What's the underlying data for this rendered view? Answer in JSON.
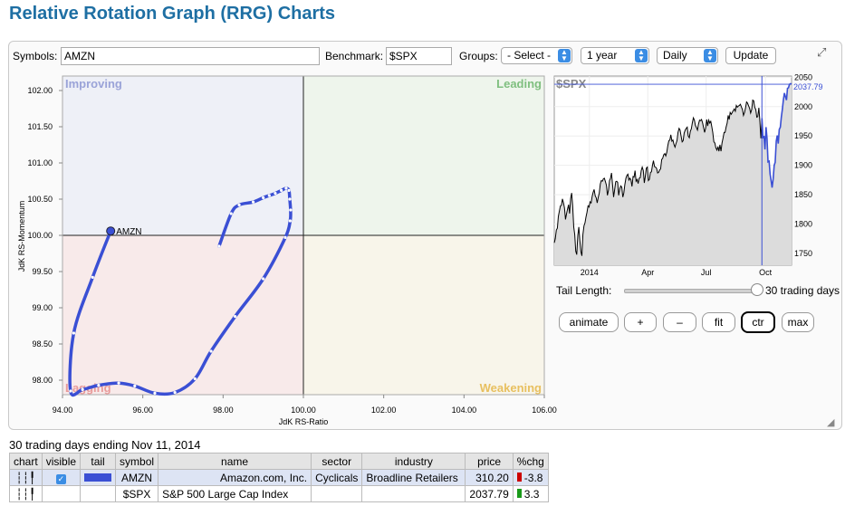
{
  "page": {
    "title": "Relative Rotation Graph (RRG) Charts"
  },
  "controls": {
    "symbols_label": "Symbols:",
    "symbols_value": "AMZN",
    "benchmark_label": "Benchmark:",
    "benchmark_value": "$SPX",
    "groups_label": "Groups:",
    "groups_value": "- Select -",
    "period_value": "1 year",
    "frequency_value": "Daily",
    "update_label": "Update"
  },
  "chart_data": [
    {
      "type": "scatter",
      "title": "",
      "xlabel": "JdK RS-Ratio",
      "ylabel": "JdK RS-Momentum",
      "xlim": [
        94,
        106
      ],
      "ylim": [
        97.8,
        102.2
      ],
      "xticks": [
        "94.00",
        "96.00",
        "98.00",
        "100.00",
        "102.00",
        "104.00",
        "106.00"
      ],
      "yticks": [
        "102.00",
        "101.50",
        "101.00",
        "100.50",
        "100.00",
        "99.50",
        "99.00",
        "98.50",
        "98.00"
      ],
      "quadrants": {
        "improving": "Improving",
        "leading": "Leading",
        "weakening": "Weakening",
        "lagging": "Lagging"
      },
      "quadrant_colors": {
        "improving": "#eef0f7",
        "leading": "#eef5ec",
        "weakening": "#f8f5ea",
        "lagging": "#f8eaea"
      },
      "series": [
        {
          "name": "AMZN",
          "color": "#3a4fd4",
          "points": [
            [
              97.9,
              99.85
            ],
            [
              98.2,
              100.3
            ],
            [
              98.4,
              100.42
            ],
            [
              98.75,
              100.46
            ],
            [
              99.0,
              100.52
            ],
            [
              99.15,
              100.55
            ],
            [
              99.3,
              100.58
            ],
            [
              99.45,
              100.62
            ],
            [
              99.57,
              100.65
            ],
            [
              99.64,
              100.62
            ],
            [
              99.66,
              100.5
            ],
            [
              99.68,
              100.35
            ],
            [
              99.67,
              100.2
            ],
            [
              99.55,
              99.97
            ],
            [
              99.0,
              99.4
            ],
            [
              98.3,
              98.88
            ],
            [
              97.7,
              98.4
            ],
            [
              97.3,
              98.02
            ],
            [
              96.8,
              97.83
            ],
            [
              96.3,
              97.82
            ],
            [
              95.8,
              97.92
            ],
            [
              95.4,
              97.96
            ],
            [
              94.9,
              97.93
            ],
            [
              94.5,
              97.87
            ],
            [
              94.2,
              97.85
            ],
            [
              94.28,
              98.65
            ],
            [
              94.75,
              99.42
            ],
            [
              95.2,
              100.06
            ]
          ]
        }
      ]
    },
    {
      "type": "line",
      "title": "$SPX",
      "last_value": "2037.79",
      "x_tick_labels": [
        "2014",
        "Apr",
        "Jul",
        "Oct"
      ],
      "yticks": [
        "2050",
        "2000",
        "1950",
        "1900",
        "1850",
        "1800",
        "1750"
      ],
      "ylim": [
        1730,
        2052
      ],
      "series": [
        {
          "name": "$SPX",
          "values": [
            1768,
            1775,
            1790,
            1793,
            1813,
            1822,
            1831,
            1832,
            1843,
            1836,
            1827,
            1808,
            1818,
            1826,
            1833,
            1818,
            1844,
            1853,
            1831,
            1795,
            1782,
            1754,
            1748,
            1781,
            1795,
            1773,
            1753,
            1746,
            1782,
            1797,
            1802,
            1812,
            1820,
            1831,
            1829,
            1838,
            1836,
            1847,
            1854,
            1859,
            1848,
            1845,
            1836,
            1846,
            1853,
            1868,
            1874,
            1873,
            1877,
            1878,
            1872,
            1866,
            1849,
            1858,
            1874,
            1878,
            1887,
            1866,
            1846,
            1858,
            1872,
            1873,
            1871,
            1849,
            1860,
            1865,
            1863,
            1846,
            1853,
            1867,
            1878,
            1883,
            1885,
            1875,
            1878,
            1875,
            1864,
            1881,
            1880,
            1891,
            1873,
            1876,
            1869,
            1878,
            1879,
            1891,
            1897,
            1891,
            1870,
            1881,
            1895,
            1897,
            1874,
            1876,
            1888,
            1889,
            1900,
            1908,
            1898,
            1897,
            1895,
            1887,
            1888,
            1892,
            1894,
            1910,
            1912,
            1918,
            1920,
            1916,
            1922,
            1934,
            1942,
            1943,
            1952,
            1941,
            1943,
            1936,
            1931,
            1937,
            1942,
            1956,
            1963,
            1960,
            1950,
            1940,
            1942,
            1955,
            1960,
            1963,
            1965,
            1950,
            1947,
            1958,
            1962,
            1973,
            1981,
            1977,
            1968,
            1964,
            1960,
            1970,
            1977,
            1976,
            1978,
            1972,
            1964,
            1956,
            1963,
            1978,
            1967,
            1977,
            1972,
            1975,
            1966,
            1956,
            1940,
            1938,
            1930,
            1926,
            1932,
            1924,
            1935,
            1924,
            1938,
            1946,
            1956,
            1956,
            1965,
            1972,
            1985,
            1978,
            1990,
            1987,
            1990,
            1993,
            1996,
            1992,
            2002,
            1999,
            2001,
            2002,
            2004,
            1999,
            1995,
            1985,
            1990,
            1998,
            2008,
            2006,
            2001,
            1997,
            1989,
            1995,
            2011,
            2010,
            1999,
            1995,
            1982,
            1983,
            1998,
            1975,
            1946,
            1980,
            1946,
            1950,
            1927,
            1965,
            1946,
            1906,
            1907,
            1885,
            1874,
            1862,
            1877,
            1900,
            1905,
            1941,
            1951,
            1937,
            1961,
            1965,
            1982,
            1995,
            2012,
            2023,
            2017,
            2011,
            2031,
            2032,
            2038,
            2039,
            2038
          ]
        }
      ]
    }
  ],
  "rrg_tail_label": "AMZN",
  "controls_right": {
    "tail_length_label": "Tail Length:",
    "tail_length_value": "30 trading days",
    "tail_fraction": 0.93,
    "buttons": {
      "animate": "animate",
      "plus": "+",
      "minus": "–",
      "fit": "fit",
      "ctr": "ctr",
      "max": "max"
    }
  },
  "table": {
    "subtitle": "30 trading days ending Nov 11, 2014",
    "headers": {
      "chart": "chart",
      "visible": "visible",
      "tail": "tail",
      "symbol": "symbol",
      "name": "name",
      "sector": "sector",
      "industry": "industry",
      "price": "price",
      "chg": "%chg"
    },
    "rows": [
      {
        "symbol": "AMZN",
        "name": "Amazon.com, Inc.",
        "sector": "Cyclicals",
        "industry": "Broadline Retailers",
        "price": "310.20",
        "chg": "-3.8",
        "chg_color": "#cc0000",
        "tail_color": "#3a4fd4",
        "visible": true
      },
      {
        "symbol": "$SPX",
        "name": "S&P 500 Large Cap Index",
        "sector": "",
        "industry": "",
        "price": "2037.79",
        "chg": "3.3",
        "chg_color": "#1a9a1a",
        "tail_color": "",
        "visible": false
      }
    ]
  },
  "icons": {
    "chart_icon": "candlestick-icon",
    "expand_icon": "expand-icon",
    "resize_icon": "resize-grip-icon"
  }
}
